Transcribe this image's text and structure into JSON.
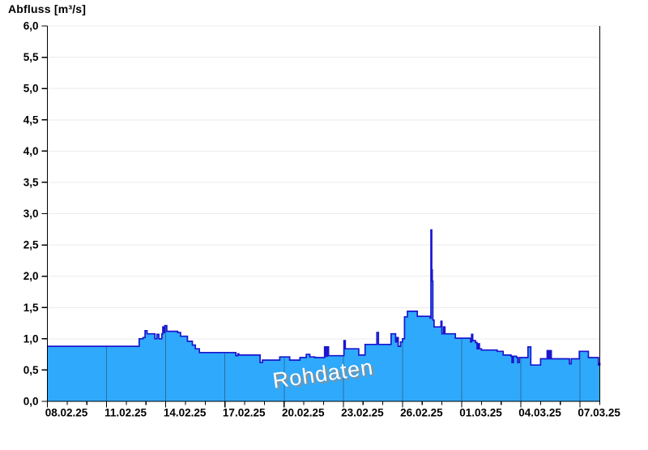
{
  "title": "Abfluss [m³/s]",
  "watermark": "Rohdaten",
  "colors": {
    "fill": "#2FA9FB",
    "stroke": "#1A16CE",
    "grid_horizontal": "#EBEBEB",
    "grid_vertical_in_fill": "#2E6DA4",
    "axis": "#000000",
    "tick_label": "#000000",
    "watermark_text": "#FFFFFF",
    "watermark_shadow": "#8F8F8F",
    "background": "#FFFFFF"
  },
  "chart_data": {
    "type": "area",
    "title": "Abfluss [m³/s]",
    "ylabel": "Abfluss [m³/s]",
    "xlabel": "",
    "ylim": [
      0,
      6
    ],
    "y_tick_step": 0.5,
    "y_tick_labels": [
      "0,0",
      "0,5",
      "1,0",
      "1,5",
      "2,0",
      "2,5",
      "3,0",
      "3,5",
      "4,0",
      "4,5",
      "5,0",
      "5,5",
      "6,0"
    ],
    "x_tick_labels": [
      "08.02.25",
      "11.02.25",
      "14.02.25",
      "17.02.25",
      "20.02.25",
      "23.02.25",
      "26.02.25",
      "01.03.25",
      "04.03.25",
      "07.03.25"
    ],
    "x_days_total": 28,
    "x_major_step_days": 3,
    "grid": "horizontal-light, vertical-major-visible-inside-fill",
    "legend_position": "none",
    "series": [
      {
        "name": "Rohdaten",
        "unit": "m³/s",
        "interpolation": "step-after",
        "points": [
          [
            0,
            0.88
          ],
          [
            4.6,
            0.88
          ],
          [
            4.65,
            1.0
          ],
          [
            4.85,
            1.02
          ],
          [
            4.95,
            1.13
          ],
          [
            5.05,
            1.08
          ],
          [
            5.45,
            1.0
          ],
          [
            5.55,
            1.07
          ],
          [
            5.65,
            1.0
          ],
          [
            5.8,
            1.08
          ],
          [
            5.85,
            1.19
          ],
          [
            5.9,
            1.1
          ],
          [
            5.95,
            1.21
          ],
          [
            6.05,
            1.12
          ],
          [
            6.6,
            1.1
          ],
          [
            6.75,
            1.04
          ],
          [
            7.1,
            0.96
          ],
          [
            7.35,
            0.9
          ],
          [
            7.5,
            0.84
          ],
          [
            7.7,
            0.78
          ],
          [
            9.5,
            0.78
          ],
          [
            9.55,
            0.73
          ],
          [
            9.65,
            0.76
          ],
          [
            9.7,
            0.74
          ],
          [
            10.7,
            0.74
          ],
          [
            10.78,
            0.62
          ],
          [
            10.9,
            0.66
          ],
          [
            11.7,
            0.66
          ],
          [
            11.78,
            0.71
          ],
          [
            12.2,
            0.71
          ],
          [
            12.28,
            0.66
          ],
          [
            12.7,
            0.66
          ],
          [
            12.8,
            0.7
          ],
          [
            13.05,
            0.7
          ],
          [
            13.12,
            0.75
          ],
          [
            13.3,
            0.71
          ],
          [
            13.55,
            0.7
          ],
          [
            14.0,
            0.7
          ],
          [
            14.05,
            0.87
          ],
          [
            14.12,
            0.72
          ],
          [
            14.18,
            0.87
          ],
          [
            14.25,
            0.73
          ],
          [
            15.0,
            0.73
          ],
          [
            15.03,
            0.97
          ],
          [
            15.1,
            0.84
          ],
          [
            15.72,
            0.84
          ],
          [
            15.78,
            0.74
          ],
          [
            16.05,
            0.74
          ],
          [
            16.1,
            0.91
          ],
          [
            16.65,
            0.91
          ],
          [
            16.7,
            1.1
          ],
          [
            16.78,
            0.91
          ],
          [
            17.35,
            0.91
          ],
          [
            17.42,
            1.08
          ],
          [
            17.6,
            1.08
          ],
          [
            17.65,
            0.95
          ],
          [
            17.72,
            1.02
          ],
          [
            17.78,
            0.88
          ],
          [
            17.9,
            0.95
          ],
          [
            18.0,
            1.0
          ],
          [
            18.1,
            1.35
          ],
          [
            18.25,
            1.44
          ],
          [
            18.7,
            1.44
          ],
          [
            18.75,
            1.36
          ],
          [
            19.4,
            1.33
          ],
          [
            19.44,
            2.74
          ],
          [
            19.48,
            2.1
          ],
          [
            19.51,
            1.92
          ],
          [
            19.54,
            1.3
          ],
          [
            19.6,
            1.19
          ],
          [
            19.9,
            1.19
          ],
          [
            19.95,
            1.28
          ],
          [
            20.0,
            1.08
          ],
          [
            20.08,
            1.19
          ],
          [
            20.15,
            1.08
          ],
          [
            20.6,
            1.08
          ],
          [
            20.68,
            1.01
          ],
          [
            21.4,
            1.01
          ],
          [
            21.45,
            0.95
          ],
          [
            21.5,
            1.07
          ],
          [
            21.56,
            0.97
          ],
          [
            21.7,
            0.94
          ],
          [
            21.78,
            0.84
          ],
          [
            21.84,
            0.92
          ],
          [
            21.9,
            0.84
          ],
          [
            22.0,
            0.82
          ],
          [
            22.8,
            0.8
          ],
          [
            23.1,
            0.74
          ],
          [
            23.5,
            0.72
          ],
          [
            23.55,
            0.62
          ],
          [
            23.62,
            0.72
          ],
          [
            23.78,
            0.7
          ],
          [
            23.84,
            0.62
          ],
          [
            23.92,
            0.7
          ],
          [
            24.3,
            0.7
          ],
          [
            24.36,
            0.87
          ],
          [
            24.44,
            0.87
          ],
          [
            24.5,
            0.58
          ],
          [
            24.9,
            0.58
          ],
          [
            25.0,
            0.68
          ],
          [
            25.28,
            0.68
          ],
          [
            25.33,
            0.81
          ],
          [
            25.4,
            0.68
          ],
          [
            25.47,
            0.81
          ],
          [
            25.54,
            0.68
          ],
          [
            26.4,
            0.68
          ],
          [
            26.46,
            0.6
          ],
          [
            26.55,
            0.68
          ],
          [
            26.9,
            0.68
          ],
          [
            26.96,
            0.8
          ],
          [
            27.35,
            0.8
          ],
          [
            27.42,
            0.7
          ],
          [
            27.88,
            0.7
          ],
          [
            27.93,
            0.58
          ],
          [
            28.0,
            0.62
          ]
        ]
      }
    ]
  }
}
